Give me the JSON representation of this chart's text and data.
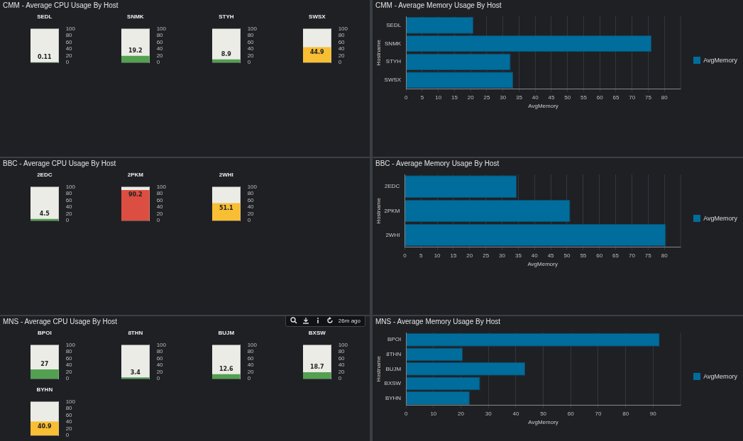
{
  "chart_data": [
    {
      "type": "bar",
      "title": "CMM - Average CPU Usage By Host",
      "categories": [
        "SEDL"
      ],
      "values": [
        0.11
      ],
      "colors": [
        "#53a051"
      ],
      "ylim": [
        0,
        100
      ],
      "yticks": [
        0,
        20,
        40,
        60,
        80,
        100
      ],
      "data_labels": true
    },
    {
      "type": "bar",
      "categories": [
        "SNMK"
      ],
      "values": [
        19.2
      ],
      "colors": [
        "#53a051"
      ],
      "ylim": [
        0,
        100
      ],
      "yticks": [
        0,
        20,
        40,
        60,
        80,
        100
      ],
      "data_labels": true
    },
    {
      "type": "bar",
      "categories": [
        "STYH"
      ],
      "values": [
        8.9
      ],
      "colors": [
        "#53a051"
      ],
      "ylim": [
        0,
        100
      ],
      "yticks": [
        0,
        20,
        40,
        60,
        80,
        100
      ],
      "data_labels": true
    },
    {
      "type": "bar",
      "categories": [
        "SWSX"
      ],
      "values": [
        44.9
      ],
      "colors": [
        "#f8be34"
      ],
      "ylim": [
        0,
        100
      ],
      "yticks": [
        0,
        20,
        40,
        60,
        80,
        100
      ],
      "data_labels": true
    },
    {
      "type": "bar",
      "orientation": "horizontal",
      "title": "CMM - Average Memory Usage By Host",
      "xlabel": "AvgMemory",
      "ylabel": "Hostname",
      "categories": [
        "SEDL",
        "SNMK",
        "STYH",
        "SWSX"
      ],
      "series": [
        {
          "name": "AvgMemory",
          "color": "#006d9c",
          "values": [
            20.9,
            76.0,
            32.4,
            33.2
          ]
        }
      ],
      "xlim": [
        0,
        85
      ],
      "xticks": [
        0,
        5,
        10,
        15,
        20,
        25,
        30,
        35,
        40,
        45,
        50,
        55,
        60,
        65,
        70,
        75,
        80
      ],
      "grid": "x",
      "legend": "right"
    },
    {
      "type": "bar",
      "title": "BBC - Average CPU Usage By Host",
      "categories": [
        "2EDC"
      ],
      "values": [
        4.5
      ],
      "colors": [
        "#53a051"
      ],
      "ylim": [
        0,
        100
      ],
      "yticks": [
        0,
        20,
        40,
        60,
        80,
        100
      ],
      "data_labels": true
    },
    {
      "type": "bar",
      "categories": [
        "2PKM"
      ],
      "values": [
        90.2
      ],
      "colors": [
        "#dc4e41"
      ],
      "ylim": [
        0,
        100
      ],
      "yticks": [
        0,
        20,
        40,
        60,
        80,
        100
      ],
      "data_labels": true
    },
    {
      "type": "bar",
      "categories": [
        "2WHI"
      ],
      "values": [
        51.1
      ],
      "colors": [
        "#f8be34"
      ],
      "ylim": [
        0,
        100
      ],
      "yticks": [
        0,
        20,
        40,
        60,
        80,
        100
      ],
      "data_labels": true
    },
    {
      "type": "bar",
      "orientation": "horizontal",
      "title": "BBC - Average Memory Usage By Host",
      "xlabel": "AvgMemory",
      "ylabel": "Hostname",
      "categories": [
        "2EDC",
        "2PKM",
        "2WHI"
      ],
      "series": [
        {
          "name": "AvgMemory",
          "color": "#006d9c",
          "values": [
            34.5,
            51.0,
            80.5
          ]
        }
      ],
      "xlim": [
        0,
        85
      ],
      "xticks": [
        0,
        5,
        10,
        15,
        20,
        25,
        30,
        35,
        40,
        45,
        50,
        55,
        60,
        65,
        70,
        75,
        80
      ],
      "grid": "x",
      "legend": "right"
    },
    {
      "type": "bar",
      "title": "MNS - Average CPU Usage By Host",
      "categories": [
        "BPOI"
      ],
      "values": [
        27
      ],
      "colors": [
        "#53a051"
      ],
      "ylim": [
        0,
        100
      ],
      "yticks": [
        0,
        20,
        40,
        60,
        80,
        100
      ],
      "data_labels": true,
      "annotations": [
        "26m ago"
      ]
    },
    {
      "type": "bar",
      "categories": [
        "8THN"
      ],
      "values": [
        3.4
      ],
      "colors": [
        "#53a051"
      ],
      "ylim": [
        0,
        100
      ],
      "yticks": [
        0,
        20,
        40,
        60,
        80,
        100
      ],
      "data_labels": true
    },
    {
      "type": "bar",
      "categories": [
        "BUJM"
      ],
      "values": [
        12.6
      ],
      "colors": [
        "#53a051"
      ],
      "ylim": [
        0,
        100
      ],
      "yticks": [
        0,
        20,
        40,
        60,
        80,
        100
      ],
      "data_labels": true
    },
    {
      "type": "bar",
      "categories": [
        "BXSW"
      ],
      "values": [
        18.7
      ],
      "colors": [
        "#53a051"
      ],
      "ylim": [
        0,
        100
      ],
      "yticks": [
        0,
        20,
        40,
        60,
        80,
        100
      ],
      "data_labels": true
    },
    {
      "type": "bar",
      "categories": [
        "BYHN"
      ],
      "values": [
        40.9
      ],
      "colors": [
        "#f8be34"
      ],
      "ylim": [
        0,
        100
      ],
      "yticks": [
        0,
        20,
        40,
        60,
        80,
        100
      ],
      "data_labels": true
    },
    {
      "type": "bar",
      "orientation": "horizontal",
      "title": "MNS - Average Memory Usage By Host",
      "xlabel": "AvgMemory",
      "ylabel": "Hostname",
      "categories": [
        "BPOI",
        "8THN",
        "BUJM",
        "BXSW",
        "BYHN"
      ],
      "series": [
        {
          "name": "AvgMemory",
          "color": "#006d9c",
          "values": [
            92.4,
            20.7,
            43.4,
            27.0,
            23.2
          ]
        }
      ],
      "xlim": [
        0,
        100
      ],
      "xticks": [
        0,
        10,
        20,
        30,
        40,
        50,
        60,
        70,
        80,
        90
      ],
      "grid": "x",
      "legend": "right"
    }
  ]
}
